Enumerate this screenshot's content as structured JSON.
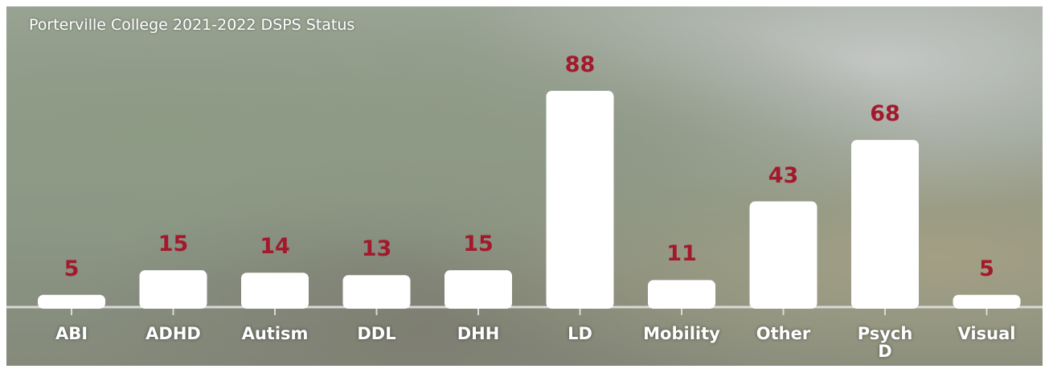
{
  "chart_data": {
    "type": "bar",
    "title": "Porterville College 2021-2022 DSPS Status",
    "categories": [
      "ABI",
      "ADHD",
      "Autism",
      "DDL",
      "DHH",
      "LD",
      "Mobility",
      "Other",
      "Psych\nD",
      "Visual"
    ],
    "values": [
      5,
      15,
      14,
      13,
      15,
      88,
      11,
      43,
      68,
      5
    ],
    "color": "#ffffff",
    "label_color": "#a3192c"
  }
}
